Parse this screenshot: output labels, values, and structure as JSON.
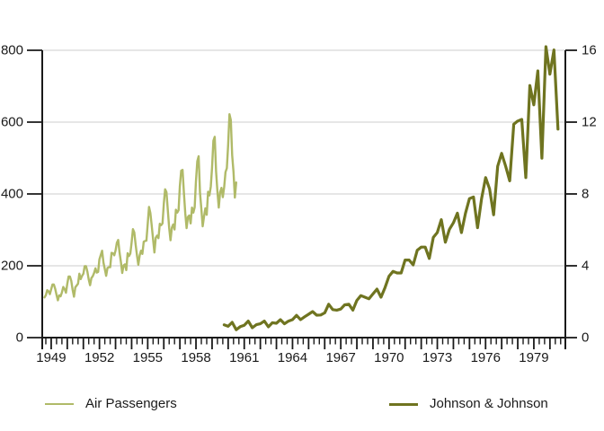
{
  "chart_data": {
    "type": "line",
    "title": "",
    "xlabel": "",
    "ylabel_left": "",
    "ylabel_right": "",
    "grid": {
      "horizontal": true,
      "vertical": false,
      "color": "#d8d8d8"
    },
    "axis_color": "#1a1a1a",
    "background": "#ffffff",
    "legend_position": "bottom",
    "x_axis": {
      "tick_years": [
        1949,
        1952,
        1955,
        1958,
        1961,
        1964,
        1967,
        1970,
        1973,
        1976,
        1979
      ],
      "minor_ticks_per_year": 3,
      "range_years": [
        1948.9,
        1981.5
      ]
    },
    "left_axis": {
      "ticks": [
        0,
        200,
        400,
        600,
        800
      ],
      "range": [
        0,
        800
      ]
    },
    "right_axis": {
      "ticks": [
        0,
        4,
        8,
        12,
        16
      ],
      "range": [
        0,
        16
      ]
    },
    "series": [
      {
        "name": "Air Passengers",
        "axis": "left",
        "color": "#b0ba68",
        "stroke_width": 2.4,
        "start_year": 1949,
        "period": "month",
        "values": [
          112,
          118,
          132,
          129,
          121,
          135,
          148,
          148,
          136,
          119,
          104,
          118,
          115,
          126,
          141,
          135,
          125,
          149,
          170,
          170,
          158,
          133,
          114,
          140,
          145,
          150,
          178,
          163,
          172,
          178,
          199,
          199,
          184,
          162,
          146,
          166,
          171,
          180,
          193,
          181,
          183,
          218,
          230,
          242,
          209,
          191,
          172,
          194,
          196,
          196,
          236,
          235,
          229,
          243,
          264,
          272,
          237,
          211,
          180,
          201,
          204,
          188,
          235,
          227,
          234,
          264,
          302,
          293,
          259,
          229,
          203,
          229,
          242,
          233,
          267,
          269,
          270,
          315,
          364,
          347,
          312,
          274,
          237,
          278,
          284,
          277,
          317,
          313,
          318,
          374,
          413,
          405,
          355,
          306,
          271,
          306,
          315,
          301,
          356,
          348,
          355,
          422,
          465,
          467,
          404,
          347,
          305,
          336,
          340,
          318,
          362,
          348,
          363,
          435,
          491,
          505,
          404,
          359,
          310,
          337,
          360,
          342,
          406,
          396,
          420,
          472,
          548,
          559,
          463,
          407,
          362,
          405,
          417,
          391,
          419,
          461,
          472,
          535,
          622,
          606,
          508,
          461,
          390,
          432
        ]
      },
      {
        "name": "Johnson & Johnson",
        "axis": "right",
        "color": "#6f7420",
        "stroke_width": 3.2,
        "start_year": 1960,
        "period": "quarter",
        "values": [
          0.71,
          0.63,
          0.85,
          0.44,
          0.61,
          0.69,
          0.92,
          0.55,
          0.72,
          0.77,
          0.92,
          0.6,
          0.83,
          0.8,
          1.0,
          0.77,
          0.92,
          1.0,
          1.24,
          1.0,
          1.16,
          1.3,
          1.45,
          1.25,
          1.26,
          1.38,
          1.86,
          1.56,
          1.53,
          1.59,
          1.83,
          1.86,
          1.53,
          2.07,
          2.34,
          2.25,
          2.16,
          2.43,
          2.7,
          2.25,
          2.79,
          3.42,
          3.69,
          3.6,
          3.6,
          4.32,
          4.32,
          4.05,
          4.86,
          5.04,
          5.04,
          4.41,
          5.58,
          5.85,
          6.57,
          5.31,
          6.03,
          6.39,
          6.93,
          5.85,
          6.93,
          7.74,
          7.83,
          6.12,
          7.74,
          8.91,
          8.28,
          6.84,
          9.54,
          10.26,
          9.54,
          8.73,
          11.88,
          12.06,
          12.15,
          8.91,
          14.04,
          12.96,
          14.85,
          9.99,
          16.2,
          14.67,
          16.02,
          11.61
        ]
      }
    ]
  },
  "legend": {
    "items": [
      {
        "label": "Air Passengers"
      },
      {
        "label": "Johnson & Johnson"
      }
    ]
  }
}
